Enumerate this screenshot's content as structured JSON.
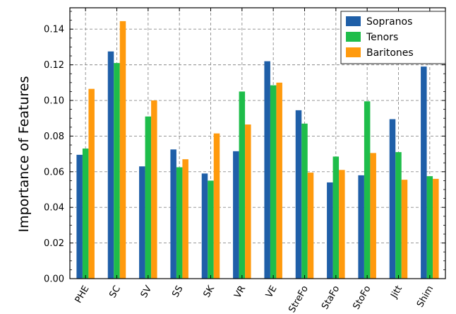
{
  "chart_data": {
    "type": "bar",
    "title": "",
    "xlabel": "",
    "ylabel": "Importance of Features",
    "ylim": [
      0,
      0.152
    ],
    "yticks": [
      "0.00",
      "0.02",
      "0.04",
      "0.06",
      "0.08",
      "0.10",
      "0.12",
      "0.14"
    ],
    "grid": true,
    "legend_position": "top-right",
    "categories": [
      "PHE",
      "SC",
      "SV",
      "SS",
      "SK",
      "VR",
      "VE",
      "StreFo",
      "StaFo",
      "StoFo",
      "Jitt",
      "Shim"
    ],
    "series": [
      {
        "name": "Sopranos",
        "color": "#1f5fa8",
        "values": [
          0.0695,
          0.1275,
          0.063,
          0.0725,
          0.059,
          0.0715,
          0.122,
          0.0945,
          0.054,
          0.058,
          0.0895,
          0.119
        ]
      },
      {
        "name": "Tenors",
        "color": "#1ebd4a",
        "values": [
          0.073,
          0.121,
          0.091,
          0.0625,
          0.055,
          0.105,
          0.1085,
          0.087,
          0.0685,
          0.0995,
          0.071,
          0.0575
        ]
      },
      {
        "name": "Baritones",
        "color": "#ff9a0d",
        "values": [
          0.1065,
          0.1445,
          0.1,
          0.067,
          0.0815,
          0.0865,
          0.11,
          0.0595,
          0.061,
          0.0705,
          0.0555,
          0.056
        ]
      }
    ]
  }
}
